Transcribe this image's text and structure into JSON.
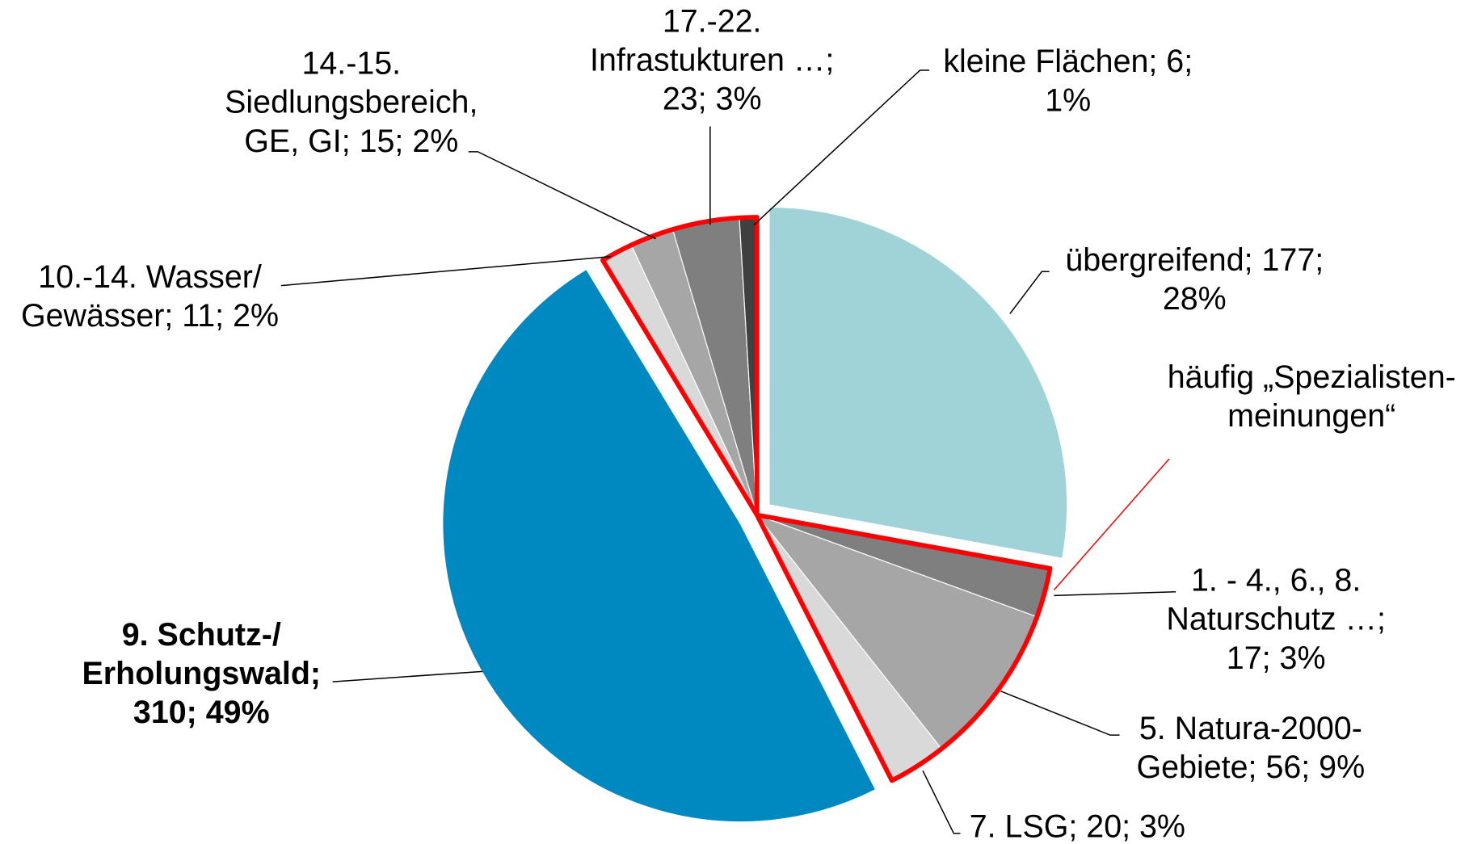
{
  "chart_data": {
    "type": "pie",
    "values": [
      177,
      17,
      56,
      20,
      310,
      11,
      15,
      23,
      6
    ],
    "value_labels": [
      [
        "übergreifend; 177;",
        "28%"
      ],
      [
        "1. - 4., 6., 8.",
        "Naturschutz …;",
        "17; 3%"
      ],
      [
        "5. Natura-2000-",
        "Gebiete; 56; 9%"
      ],
      [
        "7. LSG; 20; 3%"
      ],
      [
        "9. Schutz-/",
        "Erholungswald;",
        "310; 49%"
      ],
      [
        "10.-14. Wasser/",
        "Gewässer; 11; 2%"
      ],
      [
        "14.-15.",
        "Siedlungsbereich,",
        "GE, GI; 15; 2%"
      ],
      [
        "17.-22.",
        "Infrastukturen …;",
        "23; 3%"
      ],
      [
        "kleine Flächen; 6;",
        "1%"
      ]
    ],
    "colors": [
      "#9fd3d8",
      "#7f7f7f",
      "#a6a6a6",
      "#d9d9d9",
      "#0088c0",
      "#d9d9d9",
      "#a6a6a6",
      "#7f7f7f",
      "#404040"
    ],
    "annotation": [
      "häufig „Spezialisten-",
      "meinungen“"
    ],
    "annotation_color": "#ff0000"
  }
}
